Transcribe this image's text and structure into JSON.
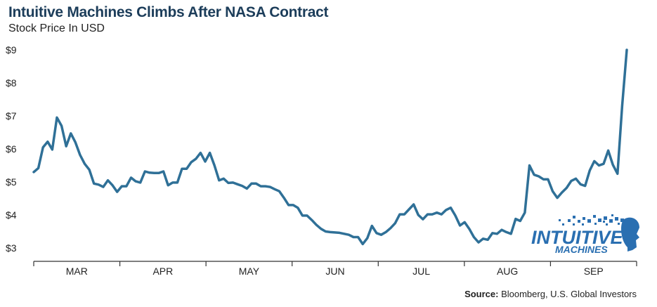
{
  "header": {
    "title": "Intuitive Machines Climbs After NASA Contract",
    "subtitle": "Stock Price In USD"
  },
  "footer": {
    "source_label": "Source:",
    "source_text": " Bloomberg, U.S. Global Investors"
  },
  "logo": {
    "line1": "INTUITIVE",
    "line2": "MACHINES",
    "color": "#2a6fb1"
  },
  "chart_data": {
    "type": "line",
    "title": "Intuitive Machines Climbs After NASA Contract",
    "subtitle": "Stock Price In USD",
    "xlabel": "",
    "ylabel": "",
    "ylim": [
      2.9,
      9.4
    ],
    "y_ticks": [
      3,
      4,
      5,
      6,
      7,
      8,
      9
    ],
    "y_tick_labels": [
      "$3",
      "$4",
      "$5",
      "$6",
      "$7",
      "$8",
      "$9"
    ],
    "x_tick_labels": [
      "MAR",
      "APR",
      "MAY",
      "JUN",
      "JUL",
      "AUG",
      "SEP"
    ],
    "grid": false,
    "line_color": "#2f7097",
    "series": [
      {
        "values": [
          5.3,
          5.42,
          6.05,
          6.22,
          5.98,
          6.95,
          6.7,
          6.08,
          6.47,
          6.2,
          5.82,
          5.55,
          5.37,
          4.95,
          4.92,
          4.85,
          5.05,
          4.9,
          4.7,
          4.87,
          4.87,
          5.13,
          5.02,
          4.98,
          5.32,
          5.28,
          5.27,
          5.27,
          5.32,
          4.9,
          4.98,
          4.98,
          5.4,
          5.4,
          5.6,
          5.7,
          5.88,
          5.62,
          5.88,
          5.5,
          5.05,
          5.1,
          4.97,
          4.98,
          4.93,
          4.88,
          4.8,
          4.95,
          4.95,
          4.87,
          4.87,
          4.85,
          4.78,
          4.72,
          4.52,
          4.3,
          4.3,
          4.22,
          3.98,
          3.98,
          3.85,
          3.7,
          3.58,
          3.5,
          3.48,
          3.47,
          3.46,
          3.43,
          3.4,
          3.33,
          3.33,
          3.12,
          3.3,
          3.67,
          3.45,
          3.4,
          3.48,
          3.6,
          3.75,
          4.02,
          4.02,
          4.17,
          4.32,
          4.0,
          3.87,
          4.02,
          4.02,
          4.07,
          4.02,
          4.15,
          4.22,
          3.98,
          3.68,
          3.78,
          3.58,
          3.33,
          3.17,
          3.28,
          3.25,
          3.45,
          3.43,
          3.55,
          3.48,
          3.43,
          3.88,
          3.82,
          4.07,
          5.5,
          5.22,
          5.17,
          5.08,
          5.08,
          4.72,
          4.52,
          4.68,
          4.82,
          5.03,
          5.1,
          4.93,
          4.88,
          5.35,
          5.63,
          5.5,
          5.55,
          5.95,
          5.52,
          5.25,
          7.3,
          9.0
        ]
      }
    ]
  }
}
